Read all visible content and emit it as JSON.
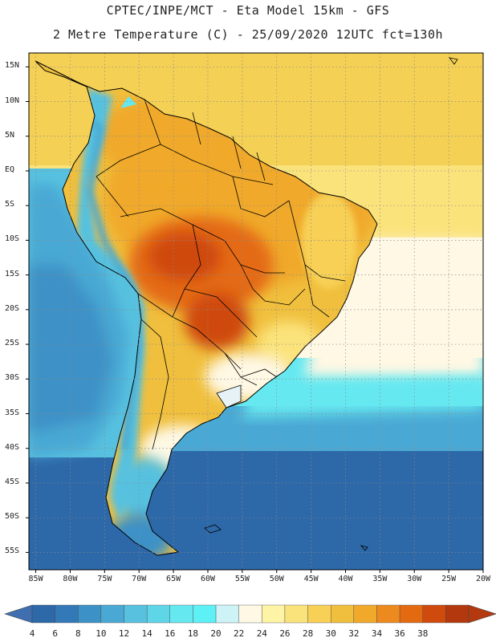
{
  "header": {
    "line1": "CPTEC/INPE/MCT -  Eta Model 15km - GFS",
    "line2": "2 Metre Temperature (C) - 25/09/2020 12UTC fct=130h"
  },
  "axes": {
    "lat_labels": [
      "15N",
      "10N",
      "5N",
      "EQ",
      "5S",
      "10S",
      "15S",
      "20S",
      "25S",
      "30S",
      "35S",
      "40S",
      "45S",
      "50S",
      "55S"
    ],
    "lon_labels": [
      "85W",
      "80W",
      "75W",
      "70W",
      "65W",
      "60W",
      "55W",
      "50W",
      "45W",
      "40W",
      "35W",
      "30W",
      "25W",
      "20W"
    ]
  },
  "colorbar": {
    "labels": [
      "4",
      "6",
      "8",
      "10",
      "12",
      "14",
      "16",
      "18",
      "20",
      "22",
      "24",
      "26",
      "28",
      "30",
      "32",
      "34",
      "36",
      "38"
    ],
    "colors": [
      "#2d68a8",
      "#3379b8",
      "#3c91c6",
      "#4aa9d4",
      "#57c1df",
      "#5fd6e8",
      "#66e8f0",
      "#5df0f5",
      "#cdf3f7",
      "#fef8e4",
      "#fdf4a5",
      "#fbe37c",
      "#f7d055",
      "#f0bf3d",
      "#f0a92a",
      "#ed8a1f",
      "#e46a12",
      "#cf4a0d",
      "#b4380e"
    ],
    "under_color": "#3f6fb0",
    "over_color": "#b5390f"
  },
  "map": {
    "ocean_zones": [
      {
        "name": "tropical-atlantic",
        "color": "#f4d055"
      },
      {
        "name": "equatorial-band",
        "color": "#fbe37c"
      },
      {
        "name": "subtropical-atlantic",
        "color": "#fef8e4"
      },
      {
        "name": "south-atlantic-mid",
        "color": "#66e8f0"
      },
      {
        "name": "south-atlantic-cool",
        "color": "#4aa9d4"
      },
      {
        "name": "southern-ocean",
        "color": "#2d68a8"
      },
      {
        "name": "pacific-east",
        "color": "#57c1df"
      }
    ]
  }
}
